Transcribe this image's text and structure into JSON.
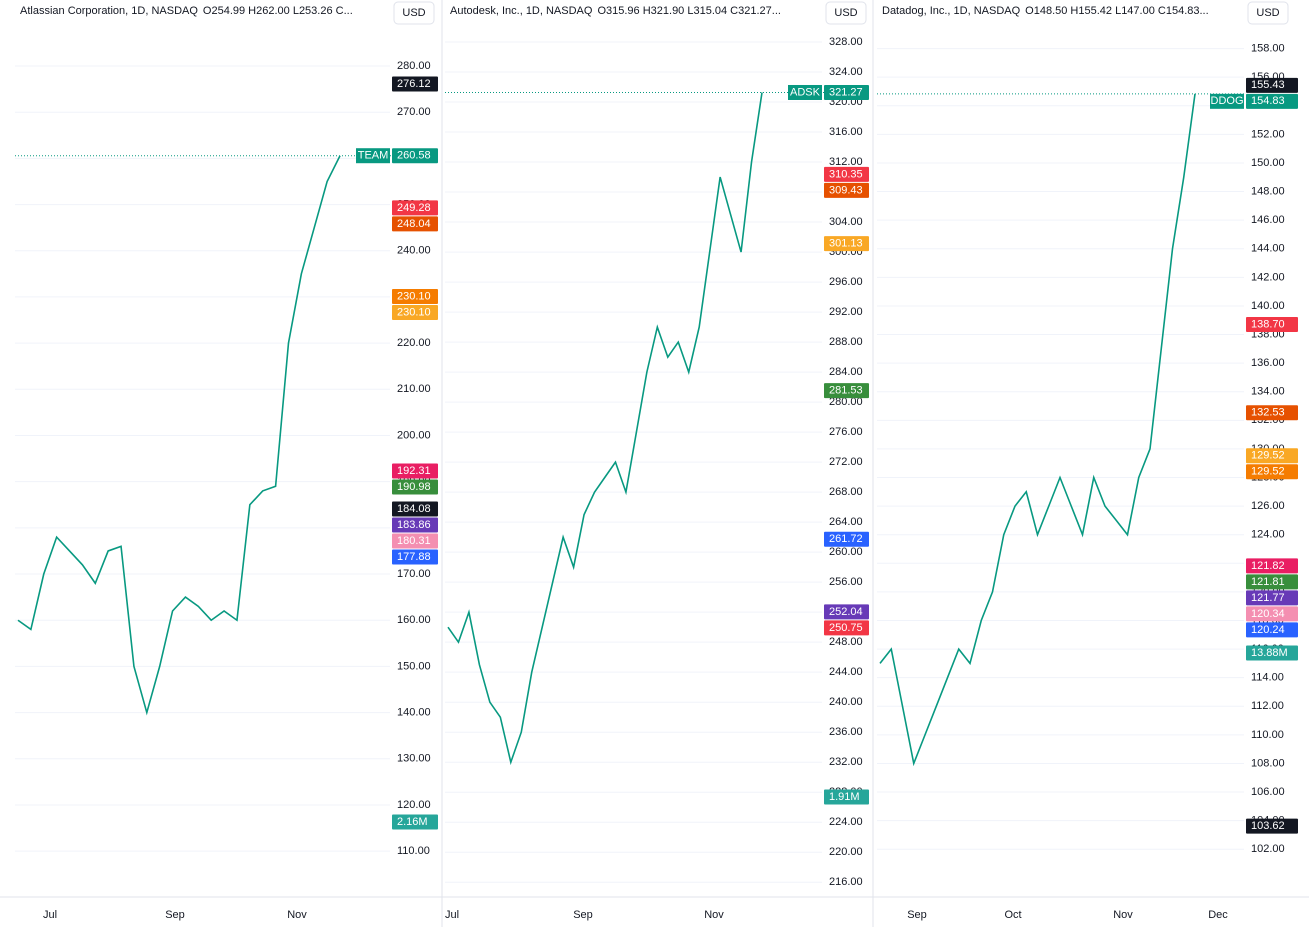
{
  "panels": [
    {
      "title": "Atlassian Corporation, 1D, NASDAQ",
      "ohlc": "O254.99  H262.00  L253.26  C...",
      "currency": "USD",
      "symbol": "TEAM",
      "volume_label": "2.16M",
      "ylim": [
        100.5,
        287.8
      ],
      "yticks": [
        {
          "value": 110,
          "label": "110.00"
        },
        {
          "value": 120,
          "label": "120.00"
        },
        {
          "value": 130,
          "label": "130.00"
        },
        {
          "value": 140,
          "label": "140.00"
        },
        {
          "value": 150,
          "label": "150.00"
        },
        {
          "value": 160,
          "label": "160.00"
        },
        {
          "value": 170,
          "label": "170.00"
        },
        {
          "value": 180,
          "label": "180.00"
        },
        {
          "value": 190,
          "label": "190.00"
        },
        {
          "value": 200,
          "label": "200.00"
        },
        {
          "value": 210,
          "label": "210.00"
        },
        {
          "value": 220,
          "label": "220.00"
        },
        {
          "value": 230,
          "label": "230.00"
        },
        {
          "value": 240,
          "label": "240.00"
        },
        {
          "value": 250,
          "label": "250.00"
        },
        {
          "value": 260,
          "label": "260.00"
        },
        {
          "value": 270,
          "label": "270.00"
        },
        {
          "value": 280,
          "label": "280.00"
        }
      ],
      "closes": [
        160,
        158,
        170,
        178,
        175,
        172,
        168,
        175,
        176,
        150,
        140,
        150,
        162,
        165,
        163,
        160,
        162,
        160,
        185,
        188,
        189,
        220,
        235,
        245,
        255,
        260.58
      ],
      "price_tags": [
        {
          "value": 276.12,
          "label": "276.12",
          "color": "#131722"
        },
        {
          "value": 260.58,
          "label": "260.58",
          "color": "#089981",
          "last": true
        },
        {
          "value": 249.28,
          "label": "249.28",
          "color": "#f23645"
        },
        {
          "value": 248.04,
          "label": "248.04",
          "color": "#e65100"
        },
        {
          "value": 230.1,
          "label": "230.10",
          "color": "#f57c00"
        },
        {
          "value": 230.1,
          "label": "230.10",
          "color": "#f9a825"
        },
        {
          "value": 192.31,
          "label": "192.31",
          "color": "#e91e63"
        },
        {
          "value": 190.98,
          "label": "190.98",
          "color": "#388e3c"
        },
        {
          "value": 184.08,
          "label": "184.08",
          "color": "#131722"
        },
        {
          "value": 183.86,
          "label": "183.86",
          "color": "#673ab7"
        },
        {
          "value": 180.31,
          "label": "180.31",
          "color": "#f48fb1"
        },
        {
          "value": 177.88,
          "label": "177.88",
          "color": "#2962ff"
        }
      ],
      "x_labels": [
        "Jul",
        "Sep",
        "Nov"
      ]
    },
    {
      "title": "Autodesk, Inc., 1D, NASDAQ",
      "ohlc": "O315.96  H321.90  L315.04  C321.27...",
      "currency": "USD",
      "symbol": "ADSK",
      "volume_label": "1.91M",
      "ylim": [
        214.3,
        329.6
      ],
      "yticks": [
        {
          "value": 216,
          "label": "216.00"
        },
        {
          "value": 220,
          "label": "220.00"
        },
        {
          "value": 224,
          "label": "224.00"
        },
        {
          "value": 228,
          "label": "228.00"
        },
        {
          "value": 232,
          "label": "232.00"
        },
        {
          "value": 236,
          "label": "236.00"
        },
        {
          "value": 240,
          "label": "240.00"
        },
        {
          "value": 244,
          "label": "244.00"
        },
        {
          "value": 248,
          "label": "248.00"
        },
        {
          "value": 252,
          "label": "252.00"
        },
        {
          "value": 256,
          "label": "256.00"
        },
        {
          "value": 260,
          "label": "260.00"
        },
        {
          "value": 264,
          "label": "264.00"
        },
        {
          "value": 268,
          "label": "268.00"
        },
        {
          "value": 272,
          "label": "272.00"
        },
        {
          "value": 276,
          "label": "276.00"
        },
        {
          "value": 280,
          "label": "280.00"
        },
        {
          "value": 284,
          "label": "284.00"
        },
        {
          "value": 288,
          "label": "288.00"
        },
        {
          "value": 292,
          "label": "292.00"
        },
        {
          "value": 296,
          "label": "296.00"
        },
        {
          "value": 300,
          "label": "300.00"
        },
        {
          "value": 304,
          "label": "304.00"
        },
        {
          "value": 308,
          "label": "308.00"
        },
        {
          "value": 312,
          "label": "312.00"
        },
        {
          "value": 316,
          "label": "316.00"
        },
        {
          "value": 320,
          "label": "320.00"
        },
        {
          "value": 324,
          "label": "324.00"
        },
        {
          "value": 328,
          "label": "328.00"
        }
      ],
      "closes": [
        250,
        248,
        252,
        245,
        240,
        238,
        232,
        236,
        244,
        250,
        256,
        262,
        258,
        265,
        268,
        270,
        272,
        268,
        276,
        284,
        290,
        286,
        288,
        284,
        290,
        300,
        310,
        305,
        300,
        312,
        321.27
      ],
      "price_tags": [
        {
          "value": 321.27,
          "label": "321.27",
          "color": "#089981",
          "last": true
        },
        {
          "value": 310.35,
          "label": "310.35",
          "color": "#f23645"
        },
        {
          "value": 309.43,
          "label": "309.43",
          "color": "#e65100"
        },
        {
          "value": 301.13,
          "label": "301.13",
          "color": "#f9a825"
        },
        {
          "value": 281.53,
          "label": "281.53",
          "color": "#388e3c"
        },
        {
          "value": 261.72,
          "label": "261.72",
          "color": "#2962ff"
        },
        {
          "value": 252.04,
          "label": "252.04",
          "color": "#673ab7"
        },
        {
          "value": 250.75,
          "label": "250.75",
          "color": "#f23645"
        }
      ],
      "x_labels": [
        "Jul",
        "Sep",
        "Nov"
      ]
    },
    {
      "title": "Datadog, Inc., 1D, NASDAQ",
      "ohlc": "O148.50  H155.42  L147.00  C154.83...",
      "currency": "USD",
      "symbol": "DDOG",
      "volume_label": "13.88M",
      "ylim": [
        98.8,
        159.3
      ],
      "yticks": [
        {
          "value": 102,
          "label": "102.00"
        },
        {
          "value": 104,
          "label": "104.00"
        },
        {
          "value": 106,
          "label": "106.00"
        },
        {
          "value": 108,
          "label": "108.00"
        },
        {
          "value": 110,
          "label": "110.00"
        },
        {
          "value": 112,
          "label": "112.00"
        },
        {
          "value": 114,
          "label": "114.00"
        },
        {
          "value": 116,
          "label": "116.00"
        },
        {
          "value": 118,
          "label": "118.00"
        },
        {
          "value": 120,
          "label": "120.00"
        },
        {
          "value": 122,
          "label": "122.00"
        },
        {
          "value": 124,
          "label": "124.00"
        },
        {
          "value": 126,
          "label": "126.00"
        },
        {
          "value": 128,
          "label": "128.00"
        },
        {
          "value": 130,
          "label": "130.00"
        },
        {
          "value": 132,
          "label": "132.00"
        },
        {
          "value": 134,
          "label": "134.00"
        },
        {
          "value": 136,
          "label": "136.00"
        },
        {
          "value": 138,
          "label": "138.00"
        },
        {
          "value": 140,
          "label": "140.00"
        },
        {
          "value": 142,
          "label": "142.00"
        },
        {
          "value": 144,
          "label": "144.00"
        },
        {
          "value": 146,
          "label": "146.00"
        },
        {
          "value": 148,
          "label": "148.00"
        },
        {
          "value": 150,
          "label": "150.00"
        },
        {
          "value": 152,
          "label": "152.00"
        },
        {
          "value": 154,
          "label": "154.00"
        },
        {
          "value": 156,
          "label": "156.00"
        },
        {
          "value": 158,
          "label": "158.00"
        }
      ],
      "closes": [
        115,
        116,
        112,
        108,
        110,
        112,
        114,
        116,
        115,
        118,
        120,
        124,
        126,
        127,
        124,
        126,
        128,
        126,
        124,
        128,
        126,
        125,
        124,
        128,
        130,
        137,
        144,
        149,
        154.83
      ],
      "price_tags": [
        {
          "value": 155.43,
          "label": "155.43",
          "color": "#131722"
        },
        {
          "value": 154.83,
          "label": "154.83",
          "color": "#089981",
          "last": true
        },
        {
          "value": 138.7,
          "label": "138.70",
          "color": "#f23645"
        },
        {
          "value": 132.53,
          "label": "132.53",
          "color": "#e65100"
        },
        {
          "value": 129.52,
          "label": "129.52",
          "color": "#f9a825"
        },
        {
          "value": 129.52,
          "label": "129.52",
          "color": "#f57c00"
        },
        {
          "value": 121.82,
          "label": "121.82",
          "color": "#e91e63"
        },
        {
          "value": 121.81,
          "label": "121.81",
          "color": "#388e3c"
        },
        {
          "value": 121.77,
          "label": "121.77",
          "color": "#673ab7"
        },
        {
          "value": 120.34,
          "label": "120.34",
          "color": "#f48fb1"
        },
        {
          "value": 120.24,
          "label": "120.24",
          "color": "#2962ff"
        },
        {
          "value": 103.62,
          "label": "103.62",
          "color": "#131722"
        }
      ],
      "x_labels": [
        "Sep",
        "Oct",
        "Nov",
        "Dec"
      ]
    }
  ]
}
